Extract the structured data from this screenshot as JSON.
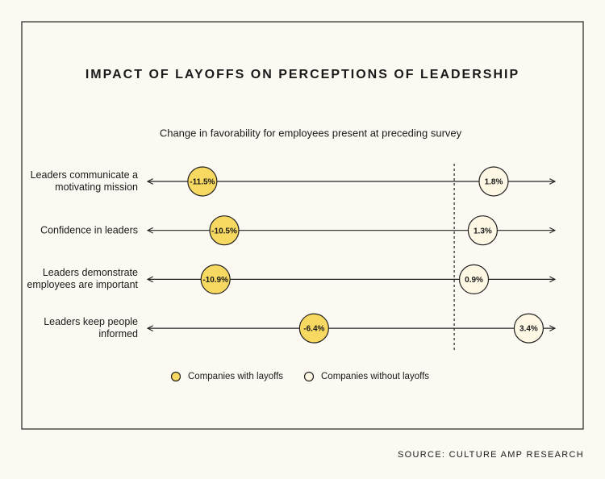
{
  "chart_data": {
    "type": "dot",
    "title": "IMPACT OF LAYOFFS ON PERCEPTIONS OF LEADERSHIP",
    "subtitle": "Change in favorability for employees present at preceding survey",
    "source": "SOURCE: CULTURE AMP RESEARCH",
    "categories": [
      "Leaders communicate a motivating mission",
      "Confidence in leaders",
      "Leaders demonstrate employees are important",
      "Leaders keep people informed"
    ],
    "series": [
      {
        "name": "Companies with layoffs",
        "color": "#f7d860",
        "values": [
          -11.5,
          -10.5,
          -10.9,
          -6.4
        ],
        "value_labels": [
          "-11.5%",
          "-10.5%",
          "-10.9%",
          "-6.4%"
        ]
      },
      {
        "name": "Companies without layoffs",
        "color": "#fdf7e4",
        "values": [
          1.8,
          1.3,
          0.9,
          3.4
        ],
        "value_labels": [
          "1.8%",
          "1.3%",
          "0.9%",
          "3.4%"
        ]
      }
    ],
    "xlim": [
      -14,
      4.6
    ]
  }
}
